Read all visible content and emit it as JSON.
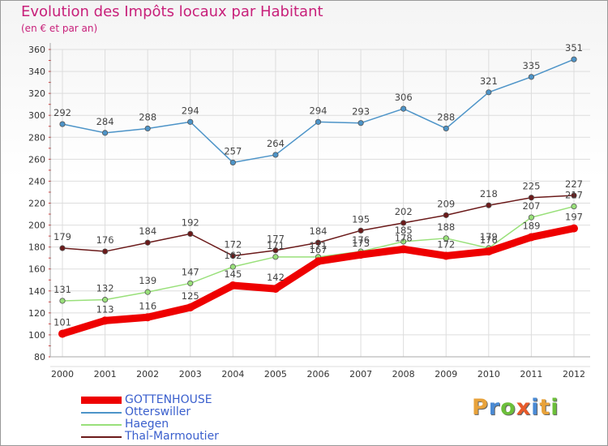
{
  "title": "Evolution des Impôts locaux par Habitant",
  "subtitle": "(en € et par an)",
  "logo": "Proxiti",
  "chart_data": {
    "type": "line",
    "title": "Evolution des Impôts locaux par Habitant",
    "subtitle": "(en € et par an)",
    "xlabel": "",
    "ylabel": "",
    "x": [
      2000,
      2001,
      2002,
      2003,
      2004,
      2005,
      2006,
      2007,
      2008,
      2009,
      2010,
      2011,
      2012
    ],
    "ylim": [
      80,
      360
    ],
    "yticks": [
      80,
      100,
      120,
      140,
      160,
      180,
      200,
      220,
      240,
      260,
      280,
      300,
      320,
      340,
      360
    ],
    "grid": true,
    "legend": "bottom-left",
    "series": [
      {
        "name": "Otterswiller",
        "color": "#4d94c8",
        "values": [
          292,
          284,
          288,
          294,
          257,
          264,
          294,
          293,
          306,
          288,
          321,
          335,
          351
        ],
        "labels": [
          "292",
          "284",
          "288",
          "294",
          "257",
          "264",
          "294",
          "293",
          "306",
          "288",
          "321",
          "335",
          "351"
        ]
      },
      {
        "name": "Thal-Marmoutier",
        "color": "#6b1a1a",
        "values": [
          179,
          176,
          184,
          192,
          172,
          177,
          184,
          195,
          202,
          209,
          218,
          225,
          227
        ],
        "labels": [
          "179",
          "176",
          "184",
          "192",
          "172",
          "177",
          "184",
          "195",
          "202",
          "209",
          "218",
          "225",
          "227"
        ]
      },
      {
        "name": "Haegen",
        "color": "#99e07a",
        "values": [
          131,
          132,
          139,
          147,
          162,
          171,
          171,
          176,
          185,
          188,
          179,
          207,
          217
        ],
        "labels": [
          "131",
          "132",
          "139",
          "147",
          "162",
          "171",
          "171",
          "176",
          "185",
          "188",
          "179",
          "207",
          "217"
        ]
      },
      {
        "name": "GOTTENHOUSE",
        "color": "#ee0000",
        "values": [
          101,
          113,
          116,
          125,
          145,
          142,
          167,
          173,
          178,
          172,
          176,
          189,
          197
        ],
        "labels": [
          "101",
          "113",
          "116",
          "125",
          "145",
          "142",
          "167",
          "173",
          "178",
          "172",
          "176",
          "189",
          "197"
        ]
      }
    ]
  },
  "legend_items": [
    {
      "name": "GOTTENHOUSE",
      "color": "#ee0000",
      "label_color": "#3a5fcd"
    },
    {
      "name": "Otterswiller",
      "color": "#4d94c8",
      "label_color": "#3a5fcd"
    },
    {
      "name": "Haegen",
      "color": "#99e07a",
      "label_color": "#3a5fcd"
    },
    {
      "name": "Thal-Marmoutier",
      "color": "#6b1a1a",
      "label_color": "#3a5fcd"
    }
  ]
}
